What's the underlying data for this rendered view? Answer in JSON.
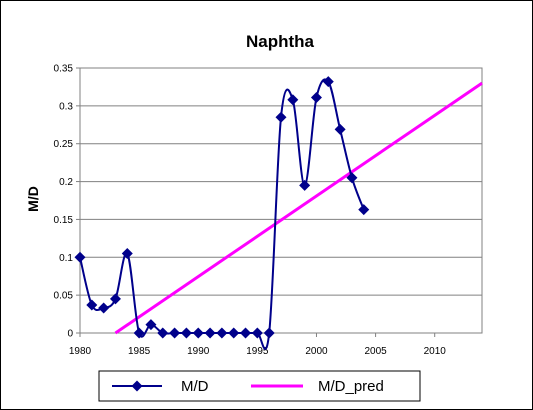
{
  "chart_data": {
    "type": "line",
    "title": "Naphtha",
    "xlabel": "",
    "ylabel": "M/D",
    "xlim": [
      1980,
      2014
    ],
    "ylim": [
      0,
      0.35
    ],
    "x_ticks": [
      "1980",
      "1985",
      "1990",
      "1995",
      "2000",
      "2005",
      "2010"
    ],
    "y_ticks": [
      "0",
      "0.05",
      "0.1",
      "0.15",
      "0.2",
      "0.25",
      "0.3",
      "0.35"
    ],
    "grid": "horizontal",
    "legend_position": "bottom",
    "series": [
      {
        "name": "M/D",
        "color": "#00008B",
        "marker": "diamond",
        "smooth": true,
        "x": [
          1980,
          1981,
          1982,
          1983,
          1984,
          1985,
          1986,
          1987,
          1988,
          1989,
          1990,
          1991,
          1992,
          1993,
          1994,
          1995,
          1996,
          1997,
          1998,
          1999,
          2000,
          2001,
          2002,
          2003,
          2004
        ],
        "y": [
          0.1,
          0.037,
          0.033,
          0.045,
          0.105,
          0,
          0.011,
          0,
          0,
          0,
          0,
          0,
          0,
          0,
          0,
          0,
          0,
          0.285,
          0.308,
          0.195,
          0.311,
          0.332,
          0.269,
          0.205,
          0.163
        ]
      },
      {
        "name": "M/D_pred",
        "color": "#FF00FF",
        "marker": "none",
        "smooth": false,
        "x": [
          1983,
          2014
        ],
        "y": [
          0,
          0.33
        ]
      }
    ]
  }
}
